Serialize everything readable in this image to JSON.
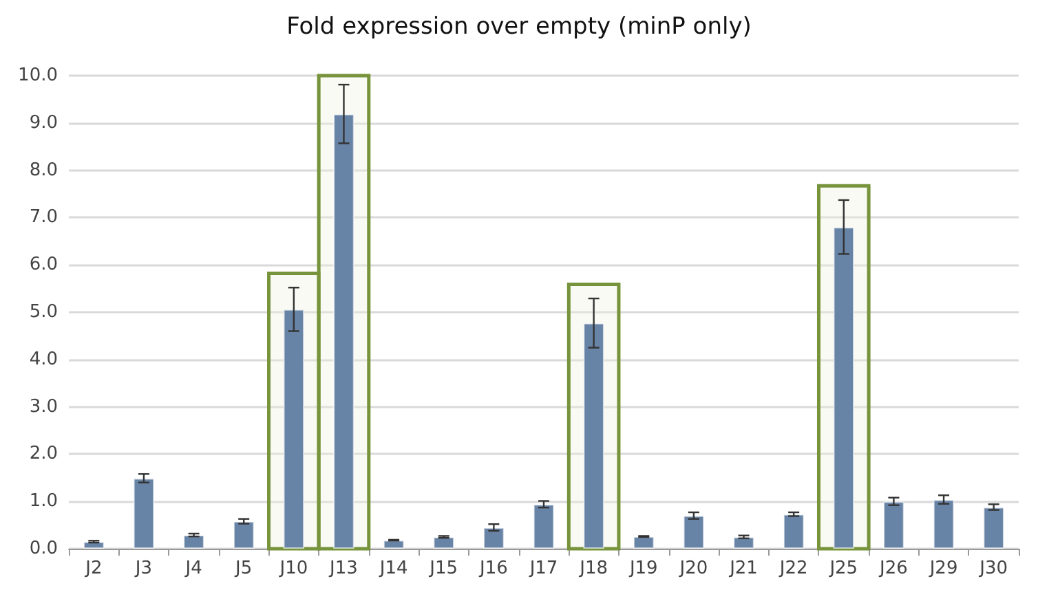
{
  "chart_data": {
    "type": "bar",
    "title": "Fold expression over empty (minP only)",
    "categories": [
      "J2",
      "J3",
      "J4",
      "J5",
      "J10",
      "J13",
      "J14",
      "J15",
      "J16",
      "J17",
      "J18",
      "J19",
      "J20",
      "J21",
      "J22",
      "J25",
      "J26",
      "J29",
      "J30"
    ],
    "values": [
      0.15,
      1.49,
      0.29,
      0.58,
      5.06,
      9.19,
      0.18,
      0.25,
      0.45,
      0.94,
      4.77,
      0.26,
      0.7,
      0.25,
      0.73,
      6.8,
      1.0,
      1.04,
      0.88
    ],
    "errors": [
      0.02,
      0.09,
      0.03,
      0.05,
      0.46,
      0.62,
      0.01,
      0.02,
      0.07,
      0.07,
      0.52,
      0.01,
      0.07,
      0.03,
      0.04,
      0.57,
      0.08,
      0.09,
      0.06
    ],
    "color": "#6783a5",
    "ylim": [
      0,
      10
    ],
    "yticks": [
      {
        "value": 0,
        "label": "0.0"
      },
      {
        "value": 1,
        "label": "1.0"
      },
      {
        "value": 2,
        "label": "2.0"
      },
      {
        "value": 3,
        "label": "3.0"
      },
      {
        "value": 4,
        "label": "4.0"
      },
      {
        "value": 5,
        "label": "5.0"
      },
      {
        "value": 6,
        "label": "6.0"
      },
      {
        "value": 7,
        "label": "7.0"
      },
      {
        "value": 8,
        "label": "8.0"
      },
      {
        "value": 9,
        "label": "9.0"
      },
      {
        "value": 10,
        "label": "10.0"
      }
    ],
    "bands": [
      {
        "axis": "x",
        "from": "J10",
        "to": "J10",
        "color": "#77933c"
      },
      {
        "axis": "x",
        "from": "J13",
        "to": "J13",
        "color": "#77933c"
      },
      {
        "axis": "x",
        "from": "J18",
        "to": "J18",
        "color": "#77933c"
      },
      {
        "axis": "x",
        "from": "J25",
        "to": "J25",
        "color": "#77933c"
      }
    ],
    "grid": "y"
  }
}
